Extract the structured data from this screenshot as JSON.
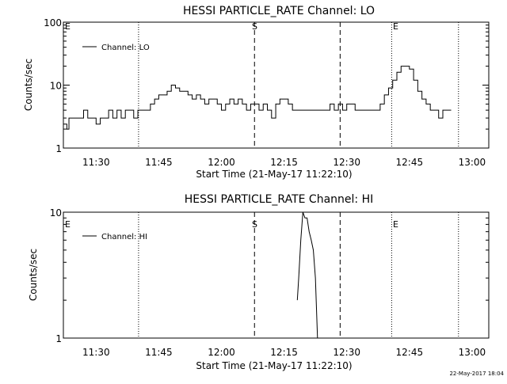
{
  "footer": {
    "stamp": "22-May-2017 18:04"
  },
  "chart_data": [
    {
      "type": "line",
      "title": "HESSI PARTICLE_RATE Channel: LO",
      "xlabel": "Start Time (21-May-17 11:22:10)",
      "ylabel": "Counts/sec",
      "yscale": "log",
      "xlim": [
        "11:22:10",
        "13:04:00"
      ],
      "ylim": [
        1,
        100
      ],
      "x_ticks": [
        "11:30",
        "11:45",
        "12:00",
        "12:15",
        "12:30",
        "12:45",
        "13:00"
      ],
      "y_ticks": [
        "1",
        "10",
        "100"
      ],
      "series": [
        {
          "name": "Channel: LO",
          "x": [
            "11:22:10",
            "11:23:00",
            "11:23:30",
            "11:24:00",
            "11:25:00",
            "11:26:00",
            "11:27:00",
            "11:28:00",
            "11:29:00",
            "11:30:00",
            "11:31:00",
            "11:32:00",
            "11:33:00",
            "11:34:00",
            "11:35:00",
            "11:36:00",
            "11:37:00",
            "11:38:00",
            "11:39:00",
            "11:40:00",
            "11:41:00",
            "11:42:00",
            "11:43:00",
            "11:44:00",
            "11:45:00",
            "11:46:00",
            "11:47:00",
            "11:48:00",
            "11:49:00",
            "11:50:00",
            "11:51:00",
            "11:52:00",
            "11:53:00",
            "11:54:00",
            "11:55:00",
            "11:56:00",
            "11:57:00",
            "11:58:00",
            "11:59:00",
            "12:00:00",
            "12:01:00",
            "12:02:00",
            "12:03:00",
            "12:04:00",
            "12:05:00",
            "12:06:00",
            "12:07:00",
            "12:08:00",
            "12:09:00",
            "12:10:00",
            "12:11:00",
            "12:12:00",
            "12:13:00",
            "12:14:00",
            "12:15:00",
            "12:16:00",
            "12:17:00",
            "12:18:00",
            "12:19:00",
            "12:20:00",
            "12:21:00",
            "12:22:00",
            "12:23:00",
            "12:24:00",
            "12:25:00",
            "12:26:00",
            "12:27:00",
            "12:28:00",
            "12:29:00",
            "12:30:00",
            "12:31:00",
            "12:32:00",
            "12:33:00",
            "12:34:00",
            "12:35:00",
            "12:36:00",
            "12:37:00",
            "12:38:00",
            "12:39:00",
            "12:40:00",
            "12:41:00",
            "12:42:00",
            "12:43:00",
            "12:44:00",
            "12:45:00",
            "12:46:00",
            "12:47:00",
            "12:48:00",
            "12:49:00",
            "12:50:00",
            "12:51:00",
            "12:52:00",
            "12:53:00",
            "12:54:00",
            "12:55:00"
          ],
          "y": [
            2.4,
            2,
            3,
            3,
            3,
            3,
            4,
            3,
            3,
            2.4,
            3,
            3,
            4,
            3,
            4,
            3,
            4,
            4,
            3,
            4,
            4,
            4,
            5,
            6,
            7,
            7,
            8,
            10,
            9,
            8,
            8,
            7,
            6,
            7,
            6,
            5,
            6,
            6,
            5,
            4,
            5,
            6,
            5,
            6,
            5,
            4,
            5,
            5,
            4,
            5,
            4,
            3,
            5,
            6,
            6,
            5,
            4,
            4,
            4,
            4,
            4,
            4,
            4,
            4,
            4,
            5,
            4,
            5,
            4,
            5,
            5,
            4,
            4,
            4,
            4,
            4,
            4,
            5,
            7,
            9,
            12,
            16,
            20,
            20,
            18,
            12,
            8,
            6,
            5,
            4,
            4,
            3,
            4,
            4,
            4
          ]
        }
      ],
      "annotations": [
        "E",
        "S",
        "E"
      ]
    },
    {
      "type": "line",
      "title": "HESSI PARTICLE_RATE Channel: HI",
      "xlabel": "Start Time (21-May-17 11:22:10)",
      "ylabel": "Counts/sec",
      "yscale": "log",
      "xlim": [
        "11:22:10",
        "13:04:00"
      ],
      "ylim": [
        1,
        10
      ],
      "x_ticks": [
        "11:30",
        "11:45",
        "12:00",
        "12:15",
        "12:30",
        "12:45",
        "13:00"
      ],
      "y_ticks": [
        "1",
        "10"
      ],
      "series": [
        {
          "name": "Channel: HI",
          "x": [
            "12:18:10",
            "12:18:30",
            "12:19:00",
            "12:19:30",
            "12:20:00",
            "12:20:30",
            "12:21:00",
            "12:21:30",
            "12:22:00",
            "12:22:30",
            "12:23:00"
          ],
          "y": [
            2,
            3,
            6,
            10,
            9,
            9,
            7,
            6,
            5,
            3,
            1
          ]
        }
      ],
      "annotations": [
        "E",
        "S",
        "E"
      ]
    }
  ]
}
